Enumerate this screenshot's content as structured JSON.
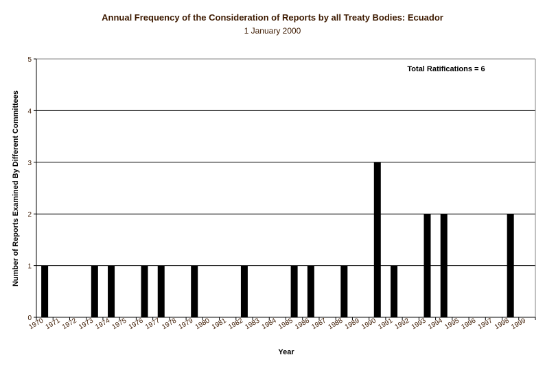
{
  "chart_data": {
    "type": "bar",
    "title": "Annual Frequency of the Consideration of Reports by all Treaty Bodies: Ecuador",
    "subtitle": "1 January 2000",
    "xlabel": "Year",
    "ylabel": "Number of Reports Examined By Different Committees",
    "ylim": [
      0,
      5
    ],
    "yticks": [
      "0",
      "1",
      "2",
      "3",
      "4",
      "5"
    ],
    "grid": true,
    "annotation": "Total Ratifications = 6",
    "categories": [
      "1970",
      "1971",
      "1972",
      "1973",
      "1974",
      "1975",
      "1976",
      "1977",
      "1978",
      "1979",
      "1980",
      "1981",
      "1982",
      "1983",
      "1984",
      "1985",
      "1986",
      "1987",
      "1988",
      "1989",
      "1990",
      "1991",
      "1992",
      "1993",
      "1994",
      "1995",
      "1996",
      "1997",
      "1998",
      "1999"
    ],
    "values": [
      1,
      0,
      0,
      1,
      1,
      0,
      1,
      1,
      0,
      1,
      0,
      0,
      1,
      0,
      0,
      1,
      1,
      0,
      1,
      0,
      3,
      1,
      0,
      2,
      2,
      0,
      0,
      0,
      2,
      0
    ],
    "colors": {
      "bar": "#000000",
      "grid": "#000000",
      "tick_text": "#3d1a00"
    }
  }
}
